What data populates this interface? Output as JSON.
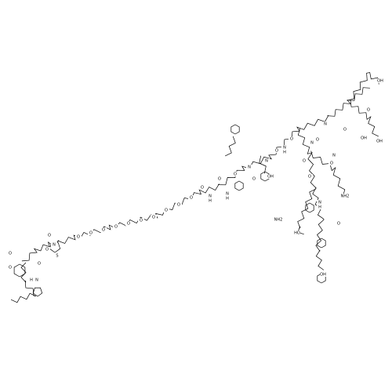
{
  "atoms": [
    "O",
    "O",
    "N",
    "H",
    "O",
    "N",
    "O",
    "S",
    "O",
    "O",
    "O",
    "O",
    "O",
    "O",
    "O",
    "O",
    "O",
    "O",
    "O",
    "O",
    "N",
    "H",
    "O",
    "N",
    "H",
    "O",
    "N",
    "O",
    "OH",
    "N",
    "O",
    "N",
    "H",
    "O",
    "NH2",
    "O",
    "N",
    "O",
    "HO",
    "O",
    "OH",
    "OH",
    "O",
    "N",
    "O",
    "OH",
    "O",
    "OH",
    "N",
    "NH2",
    "O",
    "N",
    "H"
  ]
}
